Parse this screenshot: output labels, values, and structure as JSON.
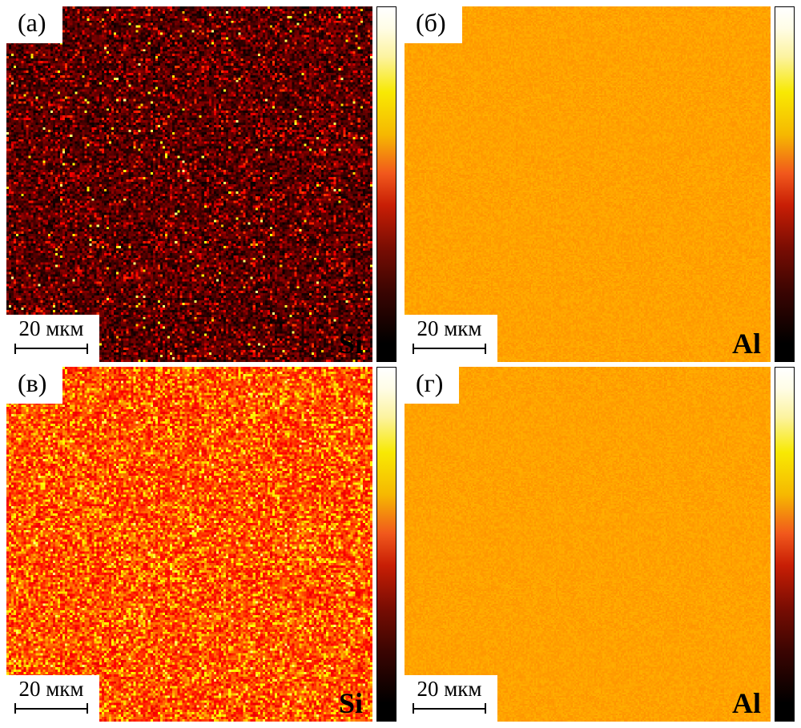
{
  "figure": {
    "description": "Four-panel EDS elemental maps (Si and Al) with hot colormap colorbars",
    "colors": {
      "page_background": "#ffffff",
      "label_text": "#000000",
      "al_map_orange": "#f6a004",
      "si_dark_background": "#2a0600"
    },
    "colorbar_stops": [
      "#ffffff 0%",
      "#fffde6 6%",
      "#fcf3a0 14%",
      "#f8e903 24%",
      "#f6b801 36%",
      "#f1581c 47%",
      "#c81e05 56%",
      "#7a0d03 68%",
      "#3c0502 80%",
      "#000000 95%"
    ],
    "panels": [
      {
        "label": "(а)",
        "element": "Si",
        "scalebar_label": "20 мкм",
        "noise": {
          "seed": 101,
          "res": 150,
          "base": 0.1,
          "jitter": 0.09,
          "spike_prob": 0.14,
          "spike_min": 0.2,
          "spike_max": 0.42,
          "spike2_prob": 0.012,
          "spike2_min": 0.55,
          "spike2_max": 0.85
        }
      },
      {
        "label": "(б)",
        "element": "Al",
        "scalebar_label": "20 мкм",
        "noise": {
          "seed": 202,
          "res": 220,
          "base": 0.545,
          "jitter": 0.018,
          "spike_prob": 0,
          "spike_min": 0,
          "spike_max": 0,
          "spike2_prob": 0,
          "spike2_min": 0,
          "spike2_max": 0
        }
      },
      {
        "label": "(в)",
        "element": "Si",
        "scalebar_label": "20 мкм",
        "noise": {
          "seed": 303,
          "res": 150,
          "base": 0.4,
          "jitter": 0.1,
          "spike_prob": 0.25,
          "spike_min": 0.5,
          "spike_max": 0.68,
          "spike2_prob": 0.02,
          "spike2_min": 0.7,
          "spike2_max": 0.85
        }
      },
      {
        "label": "(г)",
        "element": "Al",
        "scalebar_label": "20 мкм",
        "noise": {
          "seed": 404,
          "res": 220,
          "base": 0.545,
          "jitter": 0.018,
          "spike_prob": 0,
          "spike_min": 0,
          "spike_max": 0,
          "spike2_prob": 0,
          "spike2_min": 0,
          "spike2_max": 0
        }
      }
    ]
  }
}
